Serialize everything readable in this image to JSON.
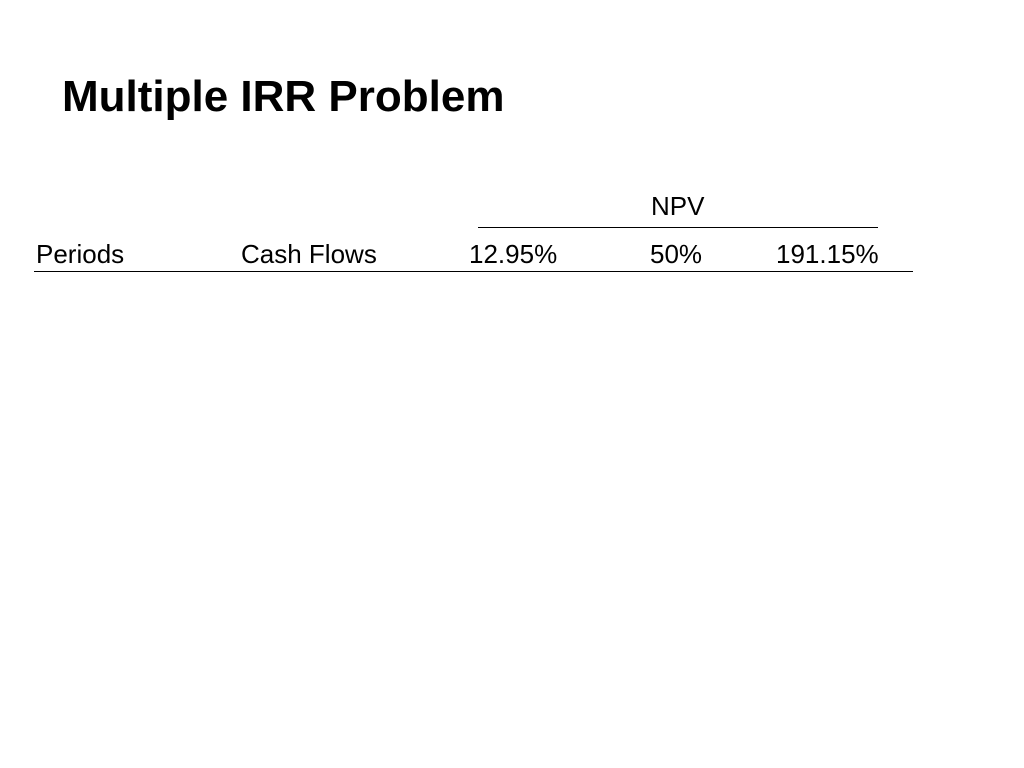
{
  "slide": {
    "title": "Multiple IRR Problem"
  },
  "table": {
    "group_header": "NPV",
    "columns": {
      "periods": "Periods",
      "cash_flows": "Cash Flows",
      "rates": [
        "12.95%",
        "50%",
        "191.15%"
      ]
    },
    "rows": []
  }
}
